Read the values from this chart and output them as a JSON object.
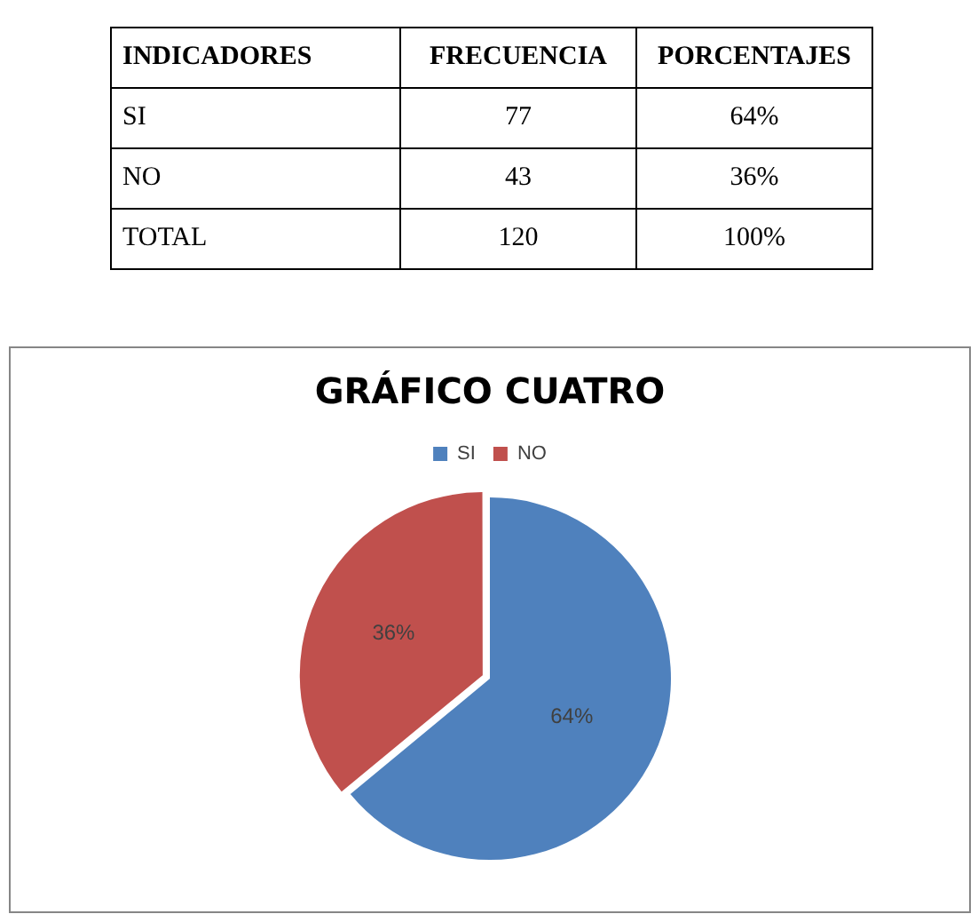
{
  "chart_data": {
    "type": "pie",
    "title": "GRÁFICO CUATRO",
    "categories": [
      "SI",
      "NO"
    ],
    "values": [
      64,
      36
    ],
    "value_labels": [
      "64%",
      "36%"
    ],
    "colors": [
      "#4f81bd",
      "#c0504d"
    ],
    "legend": "top",
    "annotations": [
      "INDICADORES",
      "FRECUENCIA",
      "PORCENTAJES",
      "77",
      "43",
      "TOTAL",
      "120",
      "100%"
    ]
  }
}
